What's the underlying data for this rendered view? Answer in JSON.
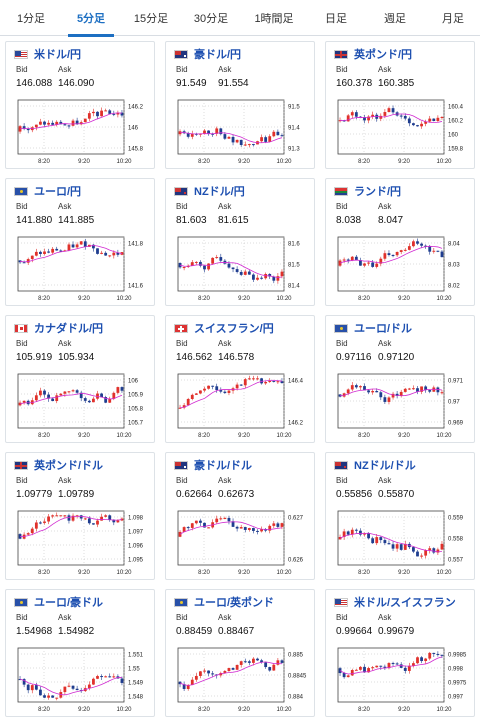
{
  "tabs": [
    {
      "label": "1分足",
      "active": false
    },
    {
      "label": "5分足",
      "active": true
    },
    {
      "label": "15分足",
      "active": false
    },
    {
      "label": "30分足",
      "active": false
    },
    {
      "label": "1時間足",
      "active": false
    },
    {
      "label": "日足",
      "active": false
    },
    {
      "label": "週足",
      "active": false
    },
    {
      "label": "月足",
      "active": false
    }
  ],
  "colors": {
    "up": "#e0312b",
    "down": "#1f3d8f",
    "ma": "#d12bd1",
    "link": "#1d4fb0",
    "accent": "#1d6fc2"
  },
  "labels": {
    "bid": "Bid",
    "ask": "Ask"
  },
  "x_ticks": [
    "8:20",
    "9:20",
    "10:20"
  ],
  "cards": [
    {
      "pair": "米ドル/円",
      "flag": "us",
      "bid": "146.088",
      "ask": "146.090",
      "ticks": [
        "146.2",
        "146",
        "145.8"
      ]
    },
    {
      "pair": "豪ドル/円",
      "flag": "au",
      "bid": "91.549",
      "ask": "91.554",
      "ticks": [
        "91.5",
        "91.4",
        "91.3"
      ]
    },
    {
      "pair": "英ポンド/円",
      "flag": "gb",
      "bid": "160.378",
      "ask": "160.385",
      "ticks": [
        "160.4",
        "160.2",
        "160",
        "159.8"
      ]
    },
    {
      "pair": "ユーロ/円",
      "flag": "eu",
      "bid": "141.880",
      "ask": "141.885",
      "ticks": [
        "141.8",
        "141.6"
      ]
    },
    {
      "pair": "NZドル/円",
      "flag": "nz",
      "bid": "81.603",
      "ask": "81.615",
      "ticks": [
        "81.6",
        "81.5",
        "81.4"
      ]
    },
    {
      "pair": "ランド/円",
      "flag": "za",
      "bid": "8.038",
      "ask": "8.047",
      "ticks": [
        "8.04",
        "8.03",
        "8.02"
      ]
    },
    {
      "pair": "カナダドル/円",
      "flag": "ca",
      "bid": "105.919",
      "ask": "105.934",
      "ticks": [
        "106",
        "105.9",
        "105.8",
        "105.7"
      ]
    },
    {
      "pair": "スイスフラン/円",
      "flag": "ch",
      "bid": "146.562",
      "ask": "146.578",
      "ticks": [
        "146.4",
        "146.2"
      ]
    },
    {
      "pair": "ユーロ/ドル",
      "flag": "eu",
      "bid": "0.97116",
      "ask": "0.97120",
      "ticks": [
        "0.971",
        "0.97",
        "0.969"
      ]
    },
    {
      "pair": "英ポンド/ドル",
      "flag": "gb",
      "bid": "1.09779",
      "ask": "1.09789",
      "ticks": [
        "1.098",
        "1.097",
        "1.096",
        "1.095"
      ]
    },
    {
      "pair": "豪ドル/ドル",
      "flag": "au",
      "bid": "0.62664",
      "ask": "0.62673",
      "ticks": [
        "0.627",
        "0.626"
      ]
    },
    {
      "pair": "NZドル/ドル",
      "flag": "nz",
      "bid": "0.55856",
      "ask": "0.55870",
      "ticks": [
        "0.559",
        "0.558",
        "0.557"
      ]
    },
    {
      "pair": "ユーロ/豪ドル",
      "flag": "eu",
      "bid": "1.54968",
      "ask": "1.54982",
      "ticks": [
        "1.551",
        "1.55",
        "1.549",
        "1.548"
      ]
    },
    {
      "pair": "ユーロ/英ポンド",
      "flag": "eu",
      "bid": "0.88459",
      "ask": "0.88467",
      "ticks": [
        "0.885",
        "0.8845",
        "0.884"
      ]
    },
    {
      "pair": "米ドル/スイスフラン",
      "flag": "us",
      "bid": "0.99664",
      "ask": "0.99679",
      "ticks": [
        "0.9985",
        "0.998",
        "0.9975",
        "0.997"
      ]
    }
  ]
}
